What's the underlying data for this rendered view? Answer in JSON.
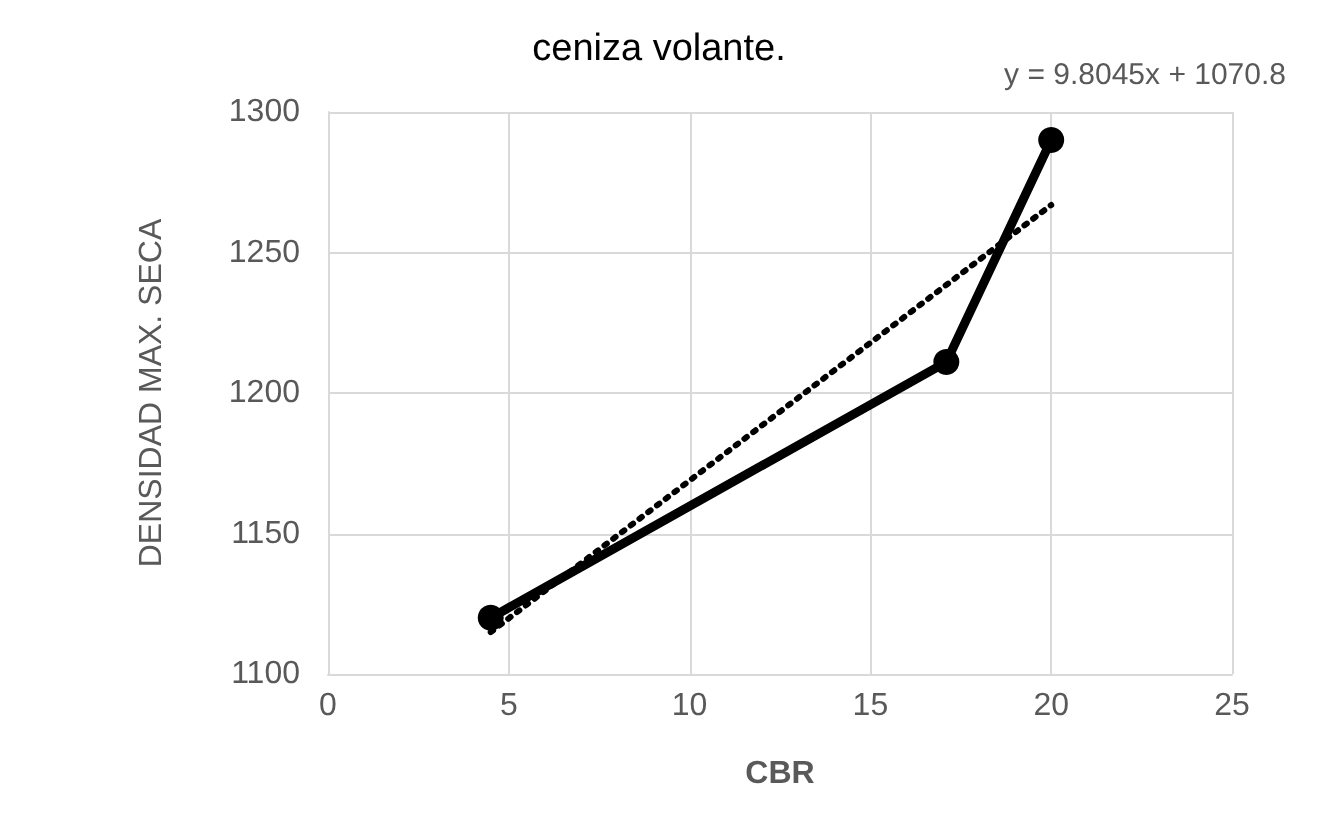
{
  "chart_data": {
    "type": "line",
    "title": "ceniza volante.",
    "xlabel": "CBR",
    "ylabel": "DENSIDAD MAX. SECA",
    "x": [
      4.5,
      17.1,
      20
    ],
    "series": [
      {
        "color": "#000000",
        "values": [
          1120,
          1211,
          1290
        ],
        "marker": "circle",
        "line_style": "solid"
      },
      {
        "type": "line",
        "x": [
          4.5,
          20
        ],
        "values": [
          1114.9,
          1266.9
        ],
        "color": "#000000",
        "marker": "none",
        "line_style": "dotted"
      }
    ],
    "annotations": [
      "y = 9.8045x + 1070.8"
    ],
    "xlim": [
      0,
      25
    ],
    "xticks": [
      0,
      5,
      10,
      15,
      20,
      25
    ],
    "ylim": [
      1100,
      1300
    ],
    "yticks": [
      1100,
      1150,
      1200,
      1250,
      1300
    ],
    "grid": true
  }
}
